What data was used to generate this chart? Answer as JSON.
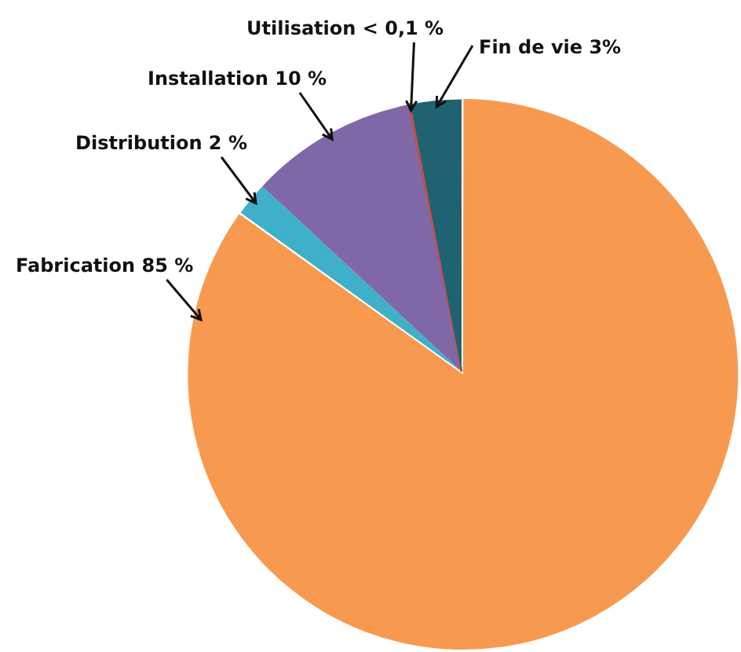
{
  "chart_data": {
    "type": "pie",
    "categories": [
      "Fabrication",
      "Distribution",
      "Installation",
      "Utilisation",
      "Fin de vie"
    ],
    "values": [
      85,
      2,
      10,
      0.1,
      3
    ],
    "value_labels": [
      "85 %",
      "2 %",
      "10 %",
      "< 0,1 %",
      "3%"
    ],
    "colors": [
      "#f79a50",
      "#3fb0c9",
      "#8068a8",
      "#c0504d",
      "#1f6373"
    ],
    "legend": false
  }
}
